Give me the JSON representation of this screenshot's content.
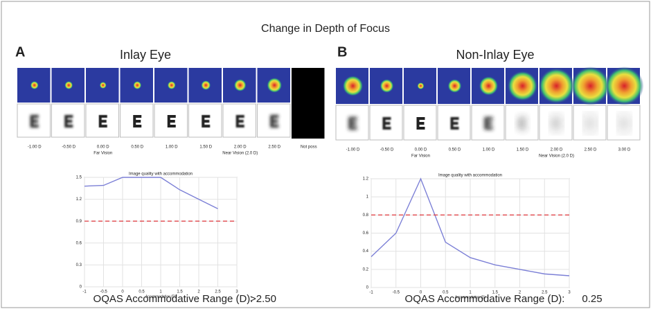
{
  "title": "Change in Depth of Focus",
  "panels": [
    {
      "letter": "A",
      "heading": "Inlay Eye",
      "strip_labels": [
        "-1.00 D",
        "-0.50 D",
        "0.00 D",
        "0.50 D",
        "1.00 D",
        "1.50 D",
        "2.00 D",
        "2.50 D",
        "Not poss"
      ],
      "far_label": "Far Vision",
      "near_label": "Near Vision (2.0 D)",
      "range_label": "OQAS Accommodative Range (D):",
      "range_value": ">2.50"
    },
    {
      "letter": "B",
      "heading": "Non-Inlay Eye",
      "strip_labels": [
        "-1.00 D",
        "-0.50 D",
        "0.00 D",
        "0.50 D",
        "1.00 D",
        "1.50 D",
        "2.00 D",
        "2.50 D",
        "3.00 D"
      ],
      "far_label": "Far Vision",
      "near_label": "Near Vision (2.0 D)",
      "range_label": "OQAS Accommodative Range (D):",
      "range_value": "0.25"
    }
  ],
  "chart_data": [
    {
      "type": "line",
      "title": "Image quality with accommodation",
      "x_label": "Accommodation (D)",
      "x": [
        -1,
        -0.5,
        0,
        0.5,
        1,
        1.5,
        2,
        2.5
      ],
      "values": [
        1.38,
        1.39,
        1.5,
        1.5,
        1.5,
        1.33,
        1.2,
        1.07
      ],
      "color": "#7b7fd6",
      "threshold": 0.9,
      "threshold_color": "#e0454a",
      "xlim": [
        -1,
        3
      ],
      "xticks": [
        -1,
        -0.5,
        0,
        0.5,
        1,
        1.5,
        2,
        2.5,
        3
      ],
      "ylim": [
        0,
        1.5
      ],
      "yticks": [
        0,
        0.3,
        0.6,
        0.9,
        1.2,
        1.5
      ],
      "grid": true
    },
    {
      "type": "line",
      "title": "Image quality with accommodation",
      "x_label": "Accommodation (D)",
      "x": [
        -1,
        -0.5,
        0,
        0.5,
        1,
        1.5,
        2,
        2.5,
        3
      ],
      "values": [
        0.34,
        0.6,
        1.2,
        0.5,
        0.33,
        0.25,
        0.2,
        0.15,
        0.13
      ],
      "color": "#7b7fd6",
      "threshold": 0.8,
      "threshold_color": "#e0454a",
      "xlim": [
        -1,
        3
      ],
      "xticks": [
        -1,
        -0.5,
        0,
        0.5,
        1,
        1.5,
        2,
        2.5,
        3
      ],
      "ylim": [
        0,
        1.2
      ],
      "yticks": [
        0,
        0.2,
        0.4,
        0.6,
        0.8,
        1,
        1.2
      ],
      "grid": true
    }
  ]
}
